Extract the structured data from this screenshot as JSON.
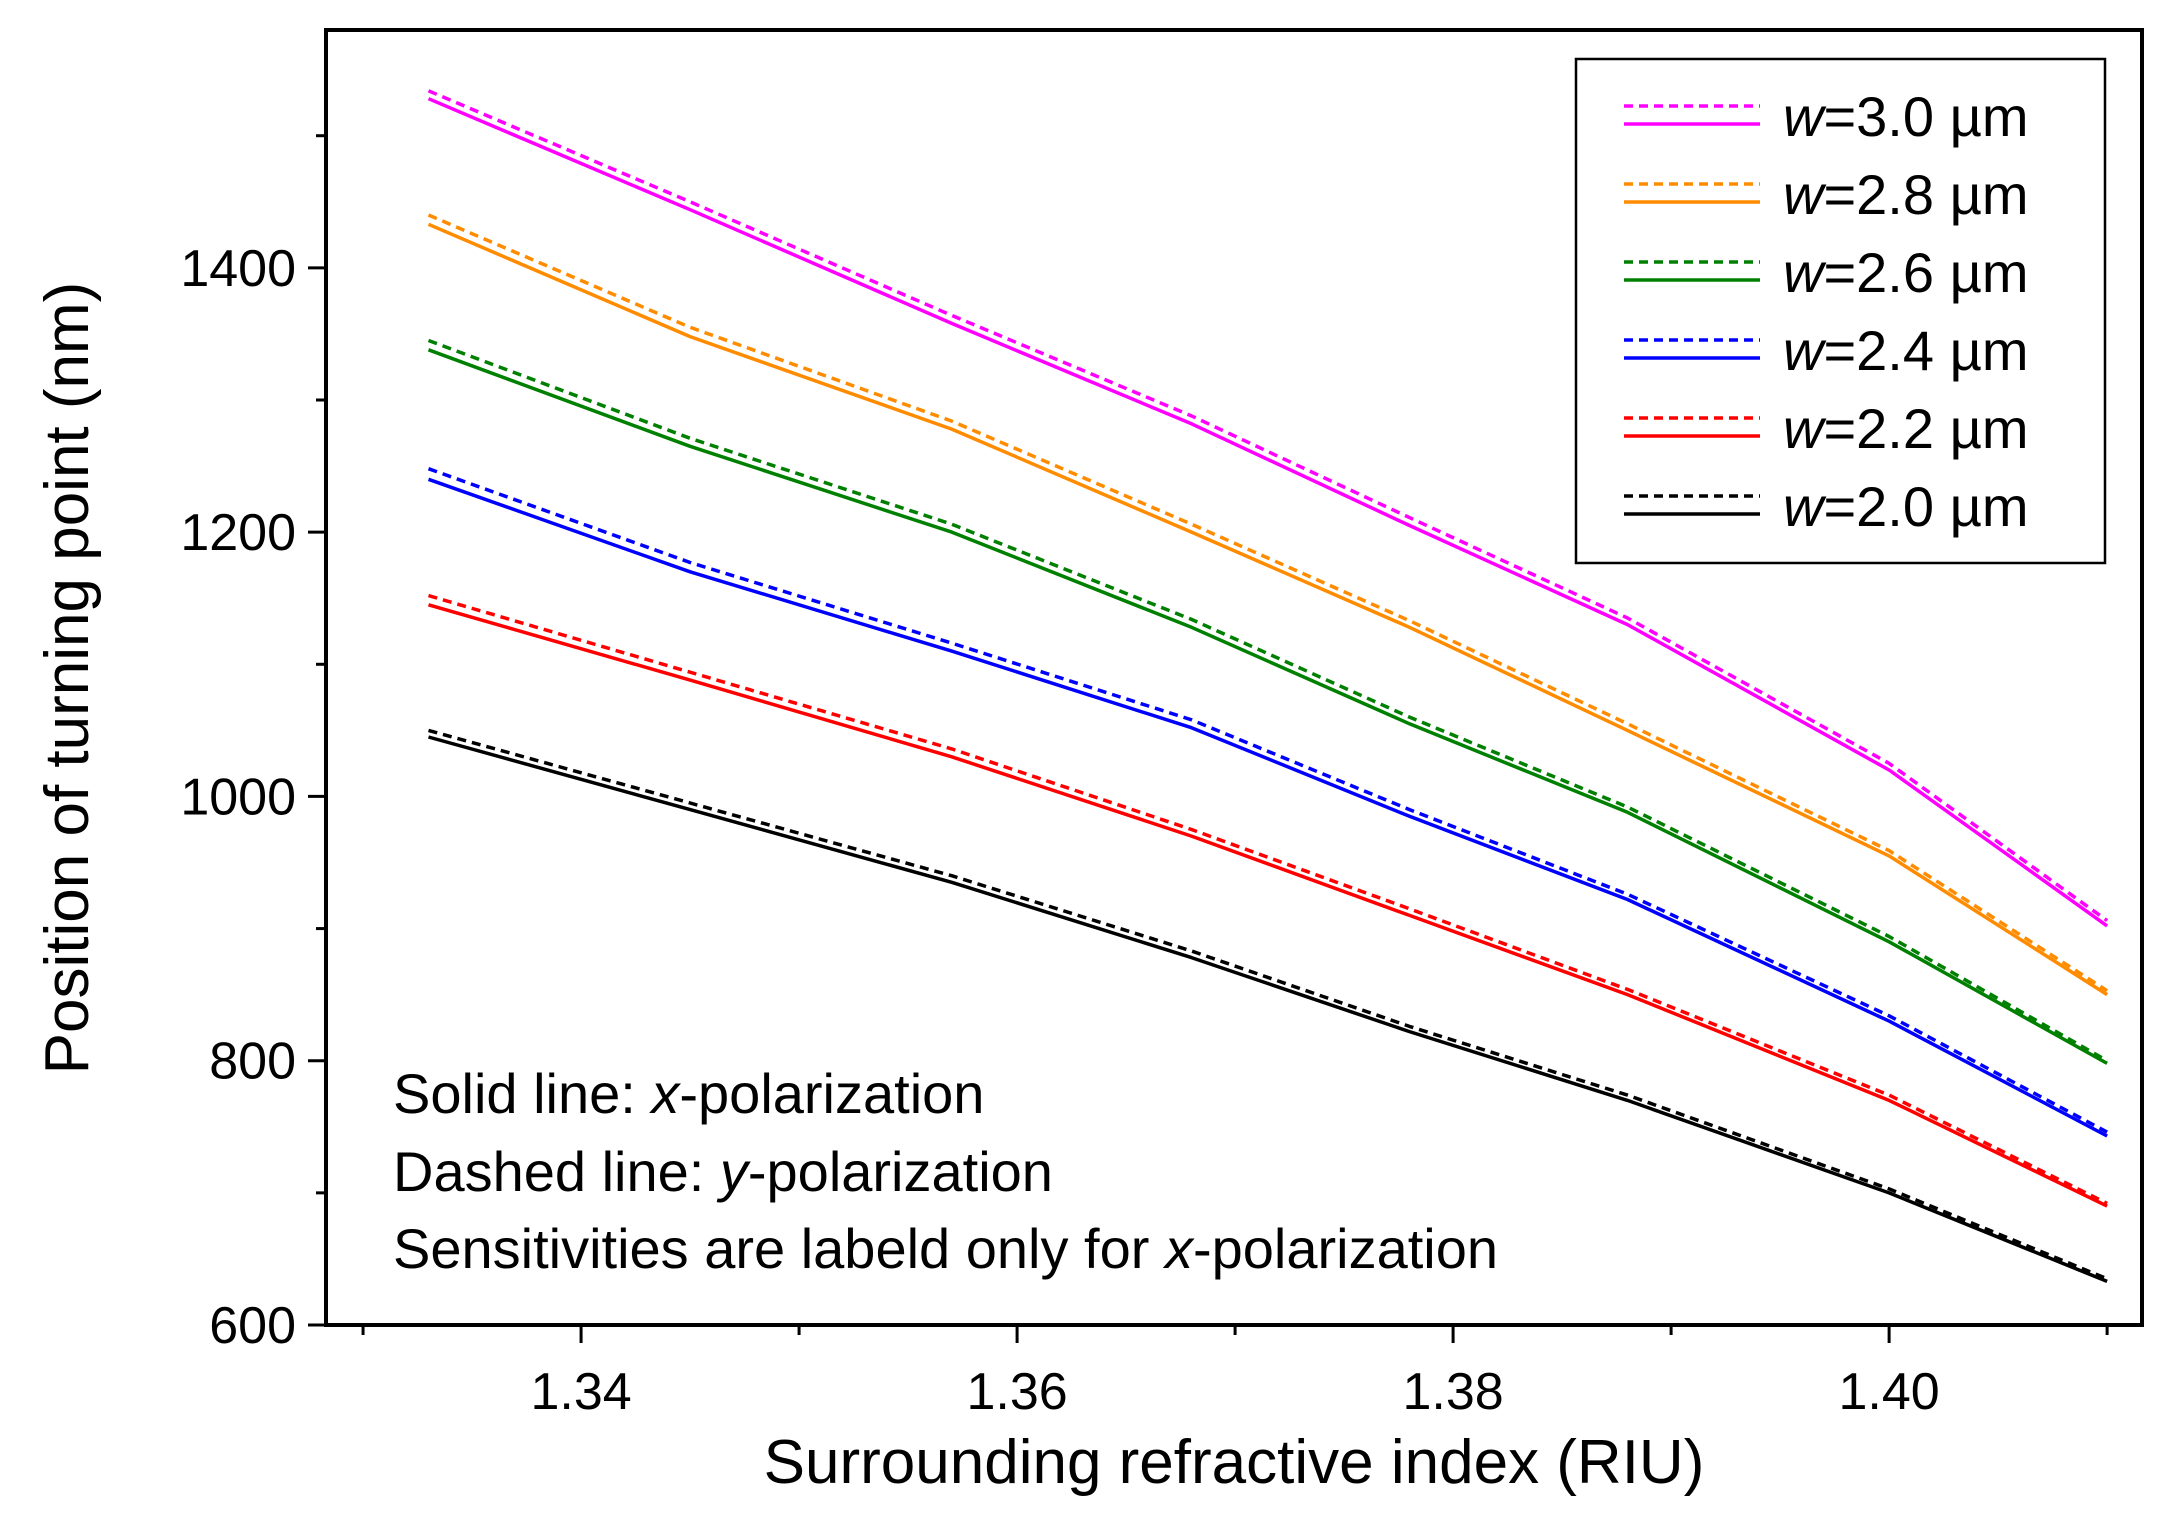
{
  "chart_data": {
    "type": "line",
    "title": "",
    "xlabel": "Surrounding refractive index (RIU)",
    "ylabel": "Position of turning point (nm)",
    "xlim": [
      1.3283,
      1.4116
    ],
    "ylim": [
      600,
      1580
    ],
    "xticks": [
      "1.34",
      "1.36",
      "1.38",
      "1.40"
    ],
    "xtick_values": [
      1.34,
      1.36,
      1.38,
      1.4
    ],
    "yticks": [
      "600",
      "800",
      "1000",
      "1200",
      "1400"
    ],
    "ytick_values": [
      600,
      800,
      1000,
      1200,
      1400
    ],
    "x": [
      1.333,
      1.345,
      1.357,
      1.368,
      1.378,
      1.388,
      1.4,
      1.41
    ],
    "series": [
      {
        "name": "w=3.0 µm",
        "width": "3.0",
        "color": "#ff00ff",
        "x_polarization": [
          1528,
          1444,
          1358,
          1282,
          1205,
          1130,
          1020,
          902
        ],
        "y_polarization": [
          1534,
          1450,
          1364,
          1288,
          1211,
          1135,
          1025,
          906
        ]
      },
      {
        "name": "w=2.8 µm",
        "width": "2.8",
        "color": "#ff8c00",
        "x_polarization": [
          1433,
          1348,
          1278,
          1200,
          1128,
          1050,
          955,
          850
        ],
        "y_polarization": [
          1440,
          1355,
          1284,
          1206,
          1133,
          1055,
          959,
          853
        ]
      },
      {
        "name": "w=2.6 µm",
        "width": "2.6",
        "color": "#008000",
        "x_polarization": [
          1338,
          1265,
          1200,
          1128,
          1055,
          988,
          890,
          798
        ],
        "y_polarization": [
          1345,
          1271,
          1206,
          1134,
          1060,
          992,
          894,
          800
        ]
      },
      {
        "name": "w=2.4 µm",
        "width": "2.4",
        "color": "#0000ff",
        "x_polarization": [
          1240,
          1170,
          1110,
          1052,
          985,
          922,
          830,
          743
        ],
        "y_polarization": [
          1248,
          1177,
          1116,
          1058,
          990,
          926,
          834,
          746
        ]
      },
      {
        "name": "w=2.2 µm",
        "width": "2.2",
        "color": "#ff0000",
        "x_polarization": [
          1145,
          1088,
          1030,
          970,
          910,
          850,
          770,
          690
        ],
        "y_polarization": [
          1152,
          1094,
          1036,
          975,
          915,
          854,
          774,
          692
        ]
      },
      {
        "name": "w=2.0 µm",
        "width": "2.0",
        "color": "#000000",
        "x_polarization": [
          1045,
          990,
          935,
          878,
          822,
          770,
          700,
          633
        ],
        "y_polarization": [
          1050,
          995,
          940,
          883,
          826,
          774,
          703,
          635
        ]
      }
    ],
    "legend": {
      "placement": "top-right",
      "prefix": "w",
      "units": "µm",
      "entries": [
        "=3.0 µm",
        "=2.8 µm",
        "=2.6 µm",
        "=2.4 µm",
        "=2.2 µm",
        "=2.0 µm"
      ]
    },
    "annotations": {
      "solid_prefix": "Solid line: ",
      "solid_var": "x",
      "solid_suffix": "-polarization",
      "dashed_prefix": "Dashed line: ",
      "dashed_var": "y",
      "dashed_suffix": "-polarization",
      "sens_prefix": "Sensitivities are labeld only for ",
      "sens_var": "x",
      "sens_suffix": "-polarization"
    }
  }
}
